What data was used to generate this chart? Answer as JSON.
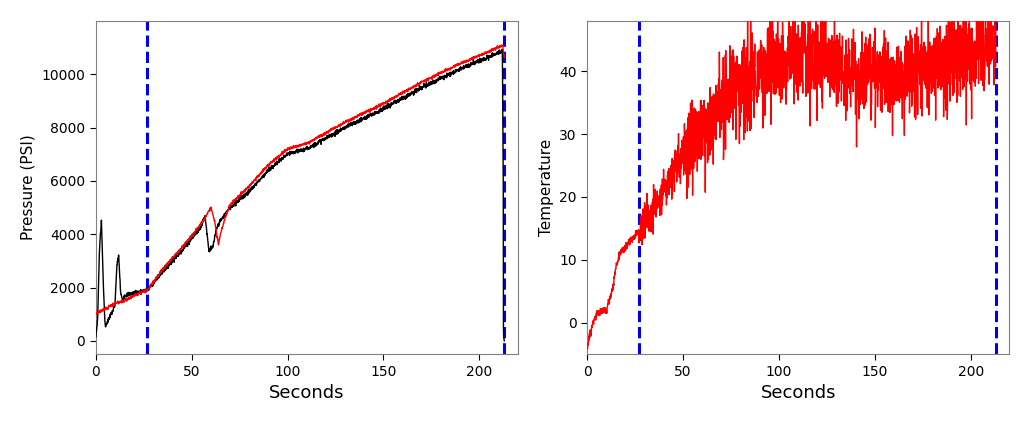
{
  "vline1": 27,
  "vline2": 213,
  "left_ylabel": "Pressure (PSI)",
  "left_xlabel": "Seconds",
  "right_ylabel": "Temperature",
  "right_xlabel": "Seconds",
  "left_xlim": [
    0,
    220
  ],
  "left_ylim": [
    -500,
    12000
  ],
  "right_xlim": [
    0,
    220
  ],
  "right_ylim": [
    -5,
    48
  ],
  "left_yticks": [
    0,
    2000,
    4000,
    6000,
    8000,
    10000
  ],
  "left_xticks": [
    0,
    50,
    100,
    150,
    200
  ],
  "right_yticks": [
    0,
    10,
    20,
    30,
    40
  ],
  "right_xticks": [
    0,
    50,
    100,
    150,
    200
  ],
  "vline_color": "#0000EE",
  "line_black": "#000000",
  "line_red": "#FF0000",
  "bg_color": "#FFFFFF"
}
